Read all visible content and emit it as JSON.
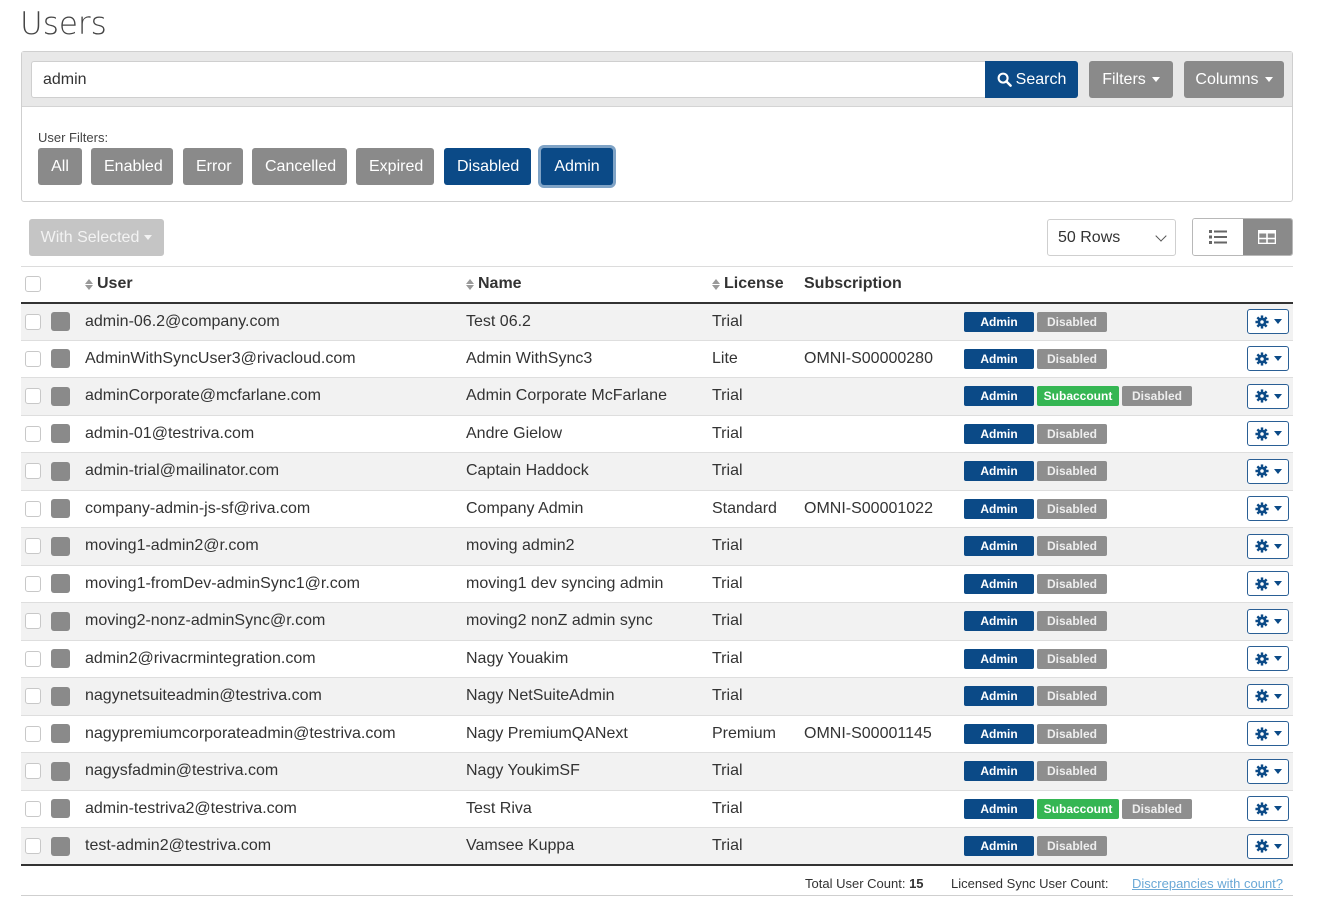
{
  "page": {
    "title": "Users"
  },
  "search": {
    "value": "admin",
    "button_label": "Search",
    "filters_label": "Filters",
    "columns_label": "Columns"
  },
  "user_filters": {
    "label": "User Filters:",
    "buttons": [
      "All",
      "Enabled",
      "Error",
      "Cancelled",
      "Expired",
      "Disabled",
      "Admin"
    ],
    "active": [
      "Disabled",
      "Admin"
    ]
  },
  "toolbar": {
    "with_selected_label": "With Selected",
    "rows_value": "50 Rows"
  },
  "table": {
    "headers": {
      "user": "User",
      "name": "Name",
      "license": "License",
      "subscription": "Subscription"
    },
    "rows": [
      {
        "user": "admin-06.2@company.com",
        "name": "Test 06.2",
        "license": "Trial",
        "subscription": "",
        "badges": [
          "Admin",
          "Disabled"
        ]
      },
      {
        "user": "AdminWithSyncUser3@rivacloud.com",
        "name": "Admin WithSync3",
        "license": "Lite",
        "subscription": "OMNI-S00000280",
        "badges": [
          "Admin",
          "Disabled"
        ]
      },
      {
        "user": "adminCorporate@mcfarlane.com",
        "name": "Admin Corporate McFarlane",
        "license": "Trial",
        "subscription": "",
        "badges": [
          "Admin",
          "Subaccount",
          "Disabled"
        ]
      },
      {
        "user": "admin-01@testriva.com",
        "name": "Andre Gielow",
        "license": "Trial",
        "subscription": "",
        "badges": [
          "Admin",
          "Disabled"
        ]
      },
      {
        "user": "admin-trial@mailinator.com",
        "name": "Captain Haddock",
        "license": "Trial",
        "subscription": "",
        "badges": [
          "Admin",
          "Disabled"
        ]
      },
      {
        "user": "company-admin-js-sf@riva.com",
        "name": "Company Admin",
        "license": "Standard",
        "subscription": "OMNI-S00001022",
        "badges": [
          "Admin",
          "Disabled"
        ]
      },
      {
        "user": "moving1-admin2@r.com",
        "name": "moving admin2",
        "license": "Trial",
        "subscription": "",
        "badges": [
          "Admin",
          "Disabled"
        ]
      },
      {
        "user": "moving1-fromDev-adminSync1@r.com",
        "name": "moving1 dev syncing admin",
        "license": "Trial",
        "subscription": "",
        "badges": [
          "Admin",
          "Disabled"
        ]
      },
      {
        "user": "moving2-nonz-adminSync@r.com",
        "name": "moving2 nonZ admin sync",
        "license": "Trial",
        "subscription": "",
        "badges": [
          "Admin",
          "Disabled"
        ]
      },
      {
        "user": "admin2@rivacrmintegration.com",
        "name": "Nagy Youakim",
        "license": "Trial",
        "subscription": "",
        "badges": [
          "Admin",
          "Disabled"
        ]
      },
      {
        "user": "nagynetsuiteadmin@testriva.com",
        "name": "Nagy NetSuiteAdmin",
        "license": "Trial",
        "subscription": "",
        "badges": [
          "Admin",
          "Disabled"
        ]
      },
      {
        "user": "nagypremiumcorporateadmin@testriva.com",
        "name": "Nagy PremiumQANext",
        "license": "Premium",
        "subscription": "OMNI-S00001145",
        "badges": [
          "Admin",
          "Disabled"
        ]
      },
      {
        "user": "nagysfadmin@testriva.com",
        "name": "Nagy YoukimSF",
        "license": "Trial",
        "subscription": "",
        "badges": [
          "Admin",
          "Disabled"
        ]
      },
      {
        "user": "admin-testriva2@testriva.com",
        "name": "Test Riva",
        "license": "Trial",
        "subscription": "",
        "badges": [
          "Admin",
          "Subaccount",
          "Disabled"
        ]
      },
      {
        "user": "test-admin2@testriva.com",
        "name": "Vamsee Kuppa",
        "license": "Trial",
        "subscription": "",
        "badges": [
          "Admin",
          "Disabled"
        ]
      }
    ]
  },
  "footer": {
    "total_label": "Total User Count:",
    "total_value": "15",
    "licensed_label": "Licensed Sync User Count:",
    "discrepancies_link": "Discrepancies with count?"
  },
  "colors": {
    "primary": "#0b4a87",
    "grey": "#8a8a8a",
    "success": "#35b653",
    "link": "#6aa8d6"
  }
}
